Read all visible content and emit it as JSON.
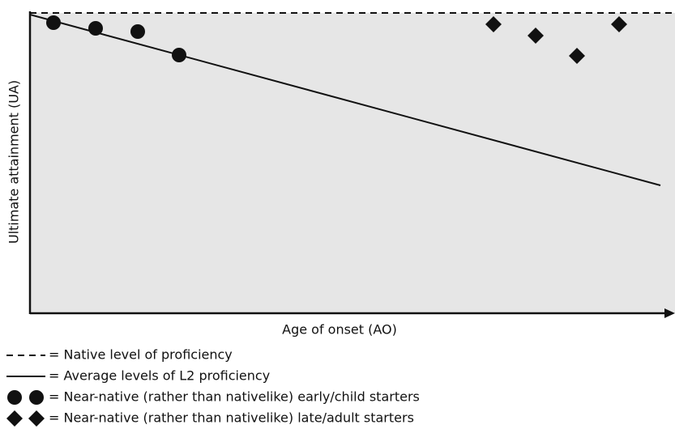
{
  "axes": {
    "x_label": "Age of onset (AO)",
    "y_label": "Ultimate attainment (UA)"
  },
  "legend": [
    {
      "text": "= Native level of proficiency"
    },
    {
      "text": "= Average levels of L2 proficiency"
    },
    {
      "text": "= Near-native (rather than nativelike) early/child starters"
    },
    {
      "text": "= Near-native (rather than nativelike) late/adult starters"
    }
  ]
}
